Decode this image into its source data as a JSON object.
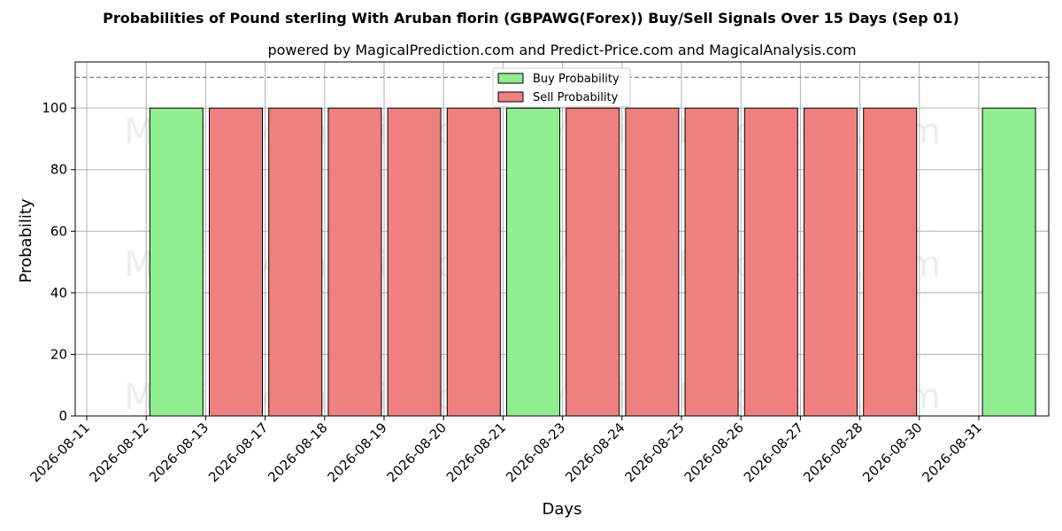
{
  "chart_data": {
    "type": "bar",
    "title": "Probabilities of Pound sterling With Aruban florin (GBPAWG(Forex)) Buy/Sell Signals Over 15 Days (Sep 01)",
    "subtitle": "powered by MagicalPrediction.com and Predict-Price.com and MagicalAnalysis.com",
    "xlabel": "Days",
    "ylabel": "Probability",
    "ylim": [
      0,
      115
    ],
    "yticks": [
      0,
      20,
      40,
      60,
      80,
      100
    ],
    "reference_line": 110,
    "grid": true,
    "legend_position": "top-center",
    "categories": [
      "2026-08-11",
      "2026-08-12",
      "2026-08-13",
      "2026-08-17",
      "2026-08-18",
      "2026-08-19",
      "2026-08-20",
      "2026-08-21",
      "2026-08-23",
      "2026-08-24",
      "2026-08-25",
      "2026-08-26",
      "2026-08-27",
      "2026-08-28",
      "2026-08-30",
      "2026-08-31"
    ],
    "series": [
      {
        "name": "Buy Probability",
        "color": "#90ee90",
        "values": [
          null,
          100,
          null,
          null,
          null,
          null,
          null,
          100,
          null,
          null,
          null,
          null,
          null,
          null,
          null,
          100
        ]
      },
      {
        "name": "Sell Probability",
        "color": "#f08080",
        "values": [
          null,
          null,
          100,
          100,
          100,
          100,
          100,
          null,
          100,
          100,
          100,
          100,
          100,
          100,
          null,
          null
        ]
      }
    ],
    "watermarks": [
      "MagicalAnalysis.com",
      "MagicalPrediction.com"
    ]
  }
}
